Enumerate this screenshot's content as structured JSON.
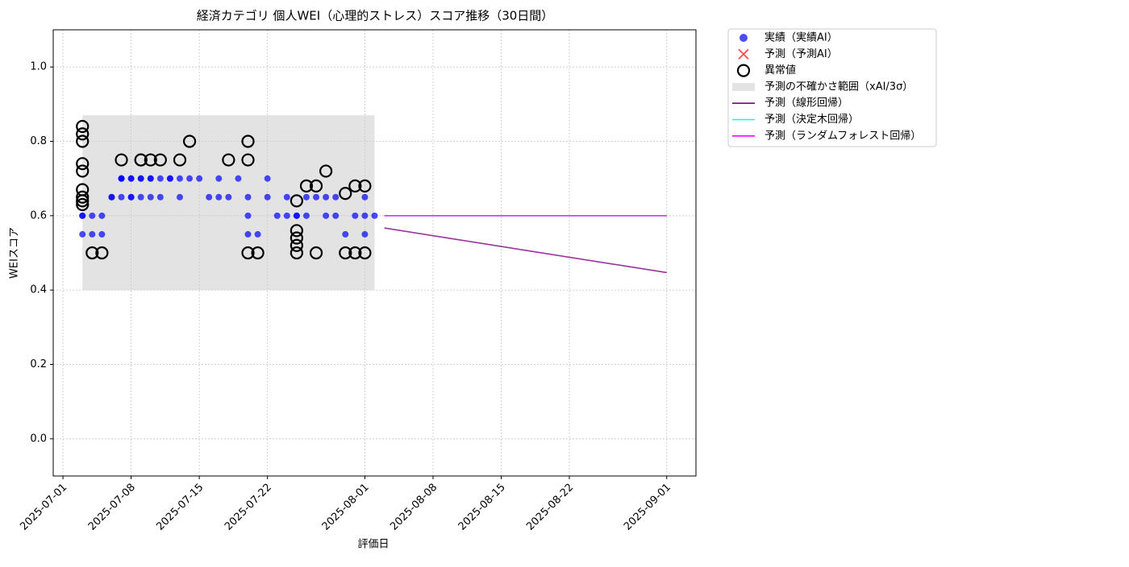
{
  "chart_data": {
    "type": "scatter",
    "title": "経済カテゴリ 個人WEI（心理的ストレス）スコア推移（30日間）",
    "xlabel": "評価日",
    "ylabel": "WEIスコア",
    "xlim": [
      "2025-06-30",
      "2025-09-04"
    ],
    "xticks": [
      "2025-07-01",
      "2025-07-08",
      "2025-07-15",
      "2025-07-22",
      "2025-08-01",
      "2025-08-08",
      "2025-08-15",
      "2025-08-22",
      "2025-09-01"
    ],
    "ylim": [
      -0.1,
      1.1
    ],
    "yticks": [
      {
        "value": 0,
        "label": "0.0"
      },
      0.2,
      0.4,
      0.6,
      0.8,
      {
        "value": 1,
        "label": "1.0"
      }
    ],
    "grid": true,
    "legend": "outside upper right",
    "series": [
      {
        "name": "実績（実績AI）",
        "type": "scatter",
        "marker": "dot",
        "color": "#0000ff",
        "x": [
          "2025-07-03",
          "2025-07-03",
          "2025-07-03",
          "2025-07-04",
          "2025-07-04",
          "2025-07-05",
          "2025-07-05",
          "2025-07-06",
          "2025-07-06",
          "2025-07-07",
          "2025-07-07",
          "2025-07-07",
          "2025-07-07",
          "2025-07-08",
          "2025-07-08",
          "2025-07-08",
          "2025-07-08",
          "2025-07-09",
          "2025-07-09",
          "2025-07-09",
          "2025-07-10",
          "2025-07-10",
          "2025-07-10",
          "2025-07-11",
          "2025-07-11",
          "2025-07-12",
          "2025-07-12",
          "2025-07-13",
          "2025-07-13",
          "2025-07-14",
          "2025-07-15",
          "2025-07-16",
          "2025-07-17",
          "2025-07-17",
          "2025-07-18",
          "2025-07-19",
          "2025-07-20",
          "2025-07-20",
          "2025-07-20",
          "2025-07-21",
          "2025-07-22",
          "2025-07-22",
          "2025-07-23",
          "2025-07-24",
          "2025-07-24",
          "2025-07-25",
          "2025-07-25",
          "2025-07-26",
          "2025-07-26",
          "2025-07-27",
          "2025-07-28",
          "2025-07-28",
          "2025-07-29",
          "2025-07-29",
          "2025-07-30",
          "2025-07-31",
          "2025-08-01",
          "2025-08-01",
          "2025-08-01",
          "2025-08-02"
        ],
        "values": [
          0.6,
          0.6,
          0.55,
          0.55,
          0.6,
          0.6,
          0.55,
          0.65,
          0.65,
          0.65,
          0.7,
          0.7,
          0.7,
          0.65,
          0.65,
          0.7,
          0.7,
          0.7,
          0.65,
          0.7,
          0.7,
          0.65,
          0.7,
          0.65,
          0.7,
          0.7,
          0.7,
          0.65,
          0.7,
          0.7,
          0.7,
          0.65,
          0.65,
          0.7,
          0.65,
          0.7,
          0.65,
          0.6,
          0.55,
          0.55,
          0.65,
          0.7,
          0.6,
          0.65,
          0.6,
          0.6,
          0.6,
          0.6,
          0.65,
          0.65,
          0.6,
          0.65,
          0.65,
          0.6,
          0.55,
          0.6,
          0.6,
          0.55,
          0.65,
          0.6
        ]
      },
      {
        "name": "予測（予測AI）",
        "type": "scatter",
        "marker": "cross",
        "color": "#ff0000",
        "x": [],
        "values": []
      },
      {
        "name": "異常値",
        "type": "scatter",
        "marker": "ring",
        "color": "#000000",
        "x": [
          "2025-07-03",
          "2025-07-03",
          "2025-07-03",
          "2025-07-03",
          "2025-07-03",
          "2025-07-03",
          "2025-07-03",
          "2025-07-03",
          "2025-07-03",
          "2025-07-04",
          "2025-07-05",
          "2025-07-07",
          "2025-07-09",
          "2025-07-09",
          "2025-07-10",
          "2025-07-11",
          "2025-07-13",
          "2025-07-14",
          "2025-07-18",
          "2025-07-20",
          "2025-07-20",
          "2025-07-20",
          "2025-07-21",
          "2025-07-25",
          "2025-07-25",
          "2025-07-25",
          "2025-07-25",
          "2025-07-25",
          "2025-07-26",
          "2025-07-27",
          "2025-07-27",
          "2025-07-28",
          "2025-07-30",
          "2025-07-30",
          "2025-07-31",
          "2025-07-31",
          "2025-08-01",
          "2025-08-01"
        ],
        "values": [
          0.84,
          0.82,
          0.8,
          0.74,
          0.72,
          0.67,
          0.65,
          0.64,
          0.63,
          0.5,
          0.5,
          0.75,
          0.75,
          0.75,
          0.75,
          0.75,
          0.75,
          0.8,
          0.75,
          0.8,
          0.75,
          0.5,
          0.5,
          0.5,
          0.52,
          0.54,
          0.56,
          0.64,
          0.68,
          0.5,
          0.68,
          0.72,
          0.5,
          0.66,
          0.5,
          0.68,
          0.5,
          0.68
        ]
      },
      {
        "name": "予測の不確かさ範囲（xAI/3σ）",
        "type": "band",
        "color": "#cccccc",
        "x": [
          "2025-07-03",
          "2025-08-02"
        ],
        "lower": [
          0.4,
          0.4
        ],
        "upper": [
          0.87,
          0.87
        ]
      },
      {
        "name": "予測（線形回帰）",
        "type": "line",
        "color": "#800080",
        "x": [
          "2025-08-03",
          "2025-09-01"
        ],
        "values": [
          0.567,
          0.447
        ]
      },
      {
        "name": "予測（決定木回帰）",
        "type": "line",
        "color": "#00ffff",
        "x": [
          "2025-08-03",
          "2025-09-01"
        ],
        "values": [
          0.6,
          0.6
        ]
      },
      {
        "name": "予測（ランダムフォレスト回帰）",
        "type": "line",
        "color": "#ff00ff",
        "x": [
          "2025-08-03",
          "2025-09-01"
        ],
        "values": [
          0.6,
          0.6
        ]
      }
    ]
  }
}
